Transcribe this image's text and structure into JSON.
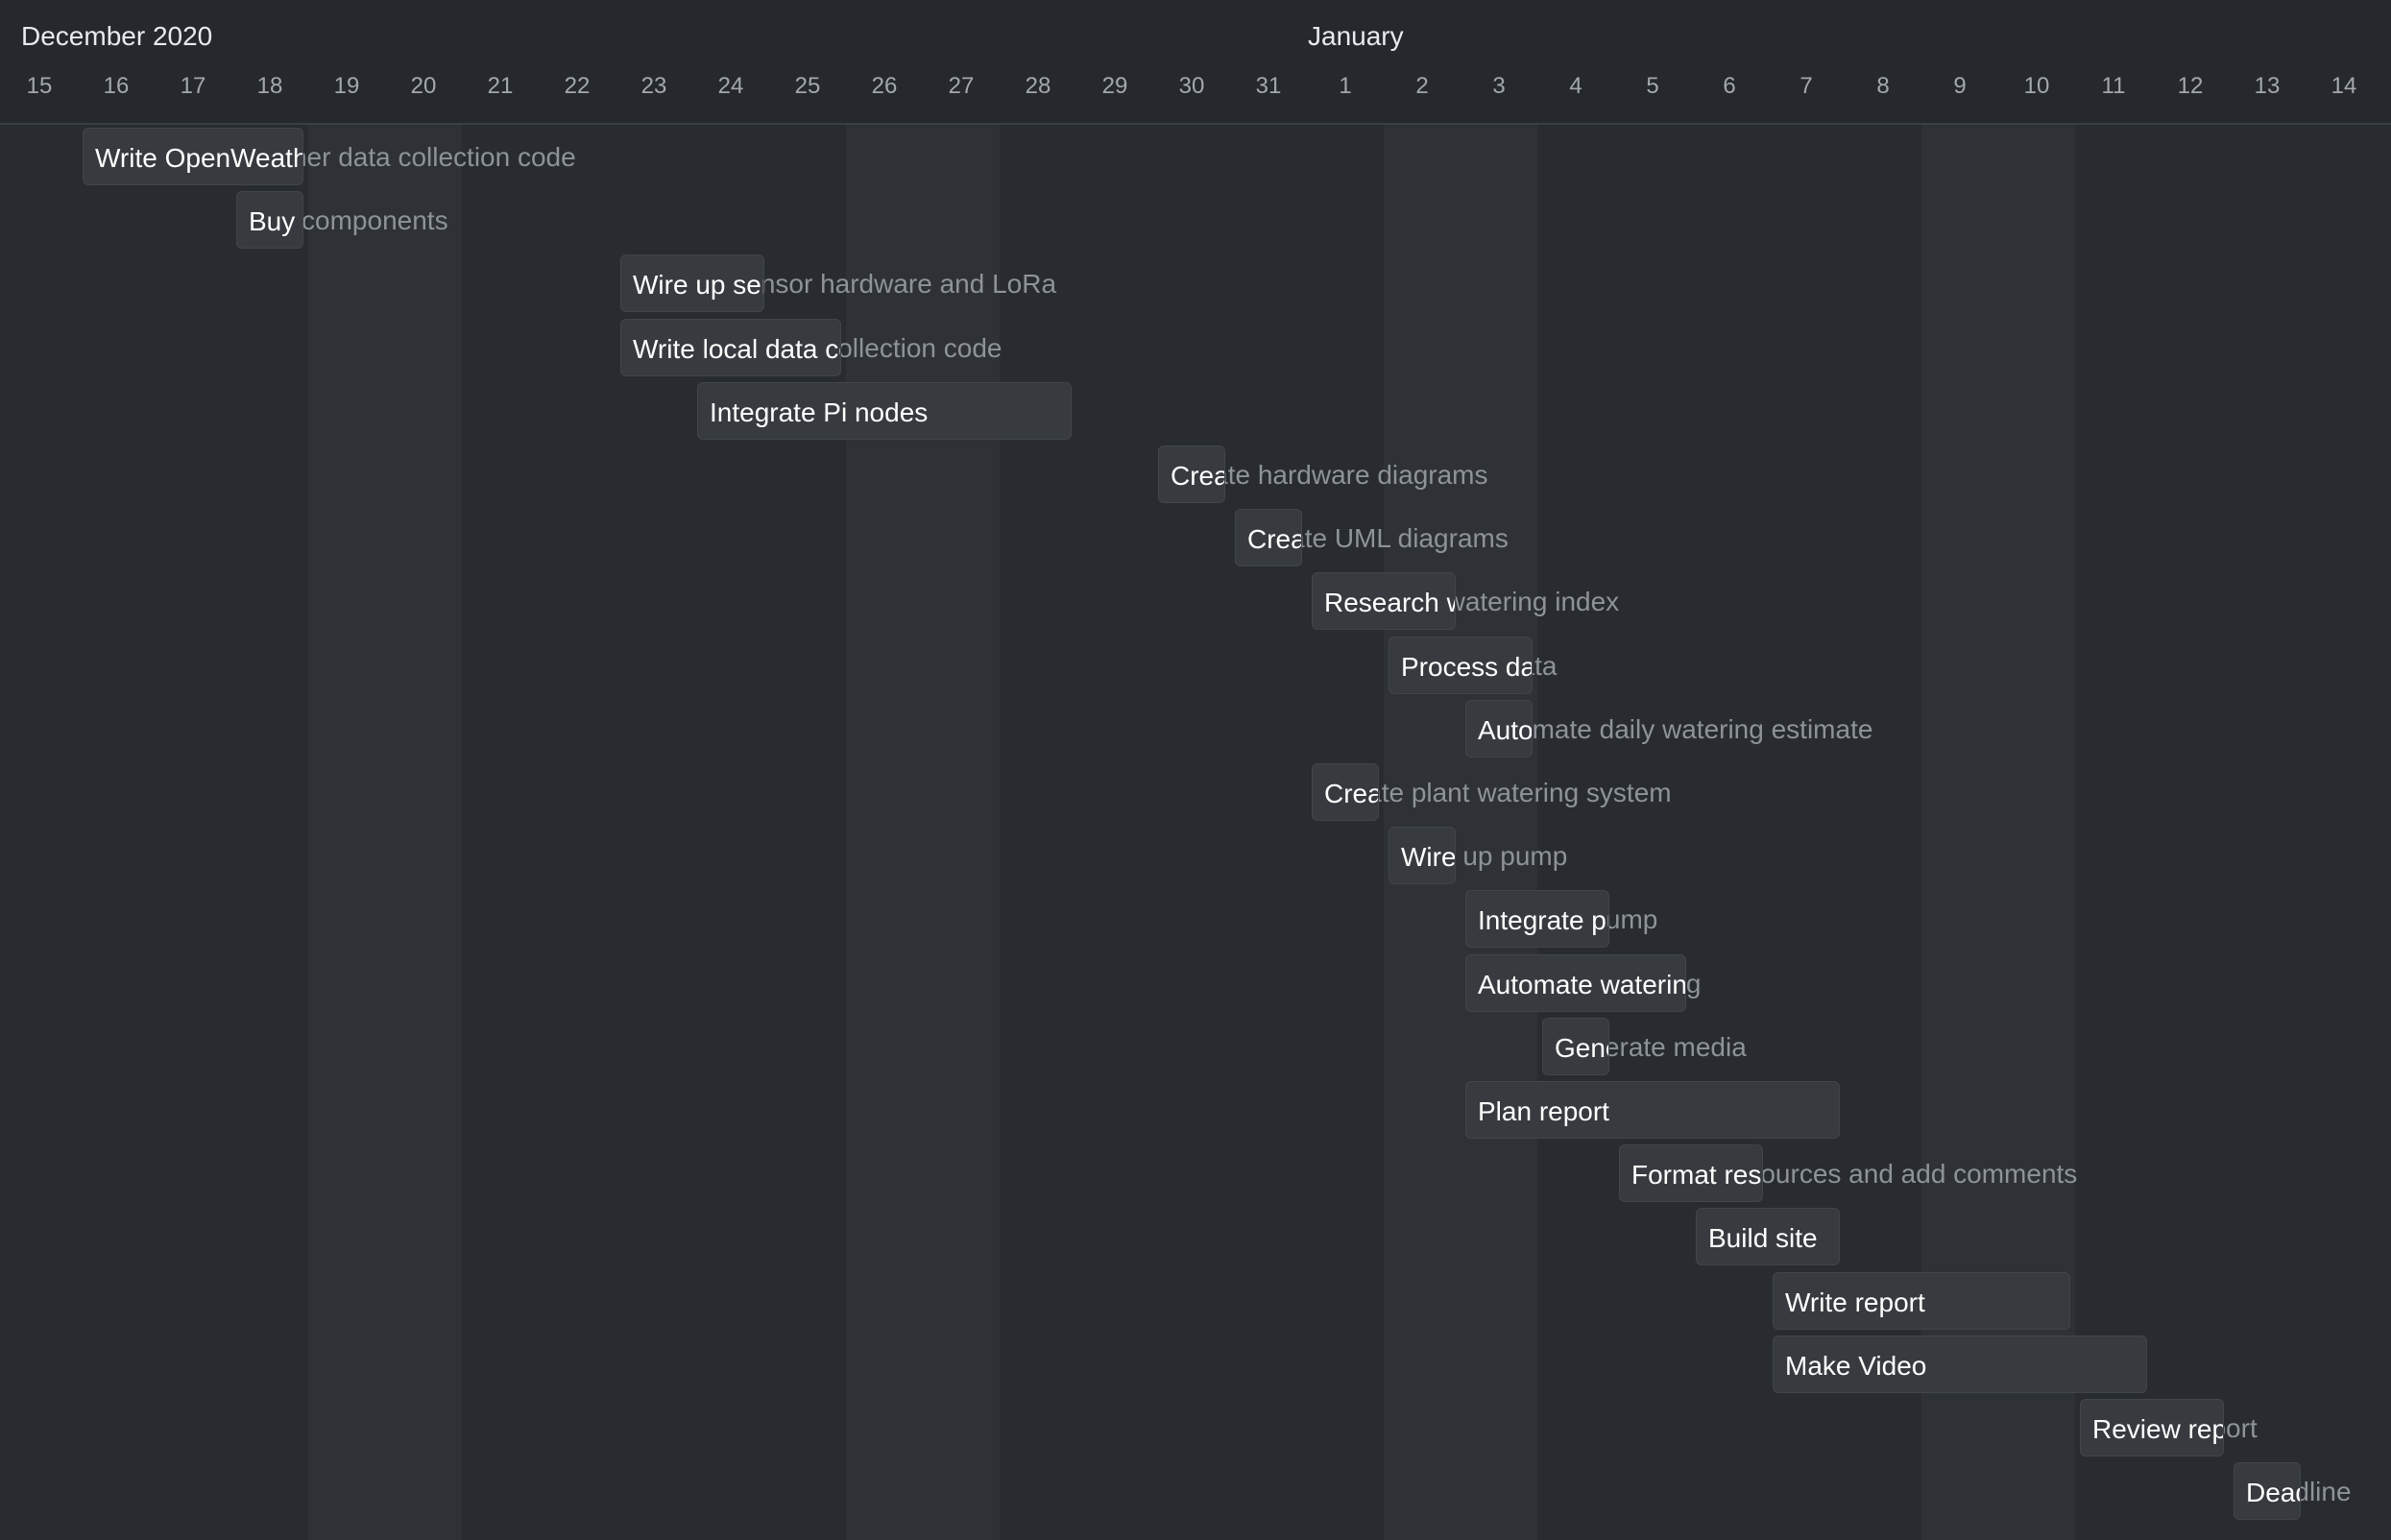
{
  "header": {
    "month_left": "December 2020",
    "month_right": "January",
    "days": [
      "15",
      "16",
      "17",
      "18",
      "19",
      "20",
      "21",
      "22",
      "23",
      "24",
      "25",
      "26",
      "27",
      "28",
      "29",
      "30",
      "31",
      "1",
      "2",
      "3",
      "4",
      "5",
      "6",
      "7",
      "8",
      "9",
      "10",
      "11",
      "12",
      "13",
      "14"
    ]
  },
  "weekend_day_indices": [
    4,
    5,
    11,
    12,
    18,
    19,
    25,
    26
  ],
  "tasks": [
    {
      "name": "Write OpenWeather data collection code",
      "start": "2020-12-16",
      "end": "2020-12-18"
    },
    {
      "name": "Buy components",
      "start": "2020-12-18",
      "end": "2020-12-18"
    },
    {
      "name": "Wire up sensor hardware and LoRa",
      "start": "2020-12-23",
      "end": "2020-12-24"
    },
    {
      "name": "Write local data collection code",
      "start": "2020-12-23",
      "end": "2020-12-25"
    },
    {
      "name": "Integrate Pi nodes",
      "start": "2020-12-24",
      "end": "2020-12-28"
    },
    {
      "name": "Create hardware diagrams",
      "start": "2020-12-30",
      "end": "2020-12-30"
    },
    {
      "name": "Create UML diagrams",
      "start": "2020-12-31",
      "end": "2020-12-31"
    },
    {
      "name": "Research watering index",
      "start": "2021-01-01",
      "end": "2021-01-02"
    },
    {
      "name": "Process data",
      "start": "2021-01-02",
      "end": "2021-01-03"
    },
    {
      "name": "Automate daily watering estimate",
      "start": "2021-01-03",
      "end": "2021-01-03"
    },
    {
      "name": "Create plant watering system",
      "start": "2021-01-01",
      "end": "2021-01-01"
    },
    {
      "name": "Wire up pump",
      "start": "2021-01-02",
      "end": "2021-01-02"
    },
    {
      "name": "Integrate pump",
      "start": "2021-01-03",
      "end": "2021-01-04"
    },
    {
      "name": "Automate watering",
      "start": "2021-01-03",
      "end": "2021-01-05"
    },
    {
      "name": "Generate media",
      "start": "2021-01-04",
      "end": "2021-01-04"
    },
    {
      "name": "Plan report",
      "start": "2021-01-03",
      "end": "2021-01-07"
    },
    {
      "name": "Format resources and add comments",
      "start": "2021-01-05",
      "end": "2021-01-06"
    },
    {
      "name": "Build site",
      "start": "2021-01-06",
      "end": "2021-01-07"
    },
    {
      "name": "Write report",
      "start": "2021-01-07",
      "end": "2021-01-10"
    },
    {
      "name": "Make Video",
      "start": "2021-01-07",
      "end": "2021-01-11"
    },
    {
      "name": "Review report",
      "start": "2021-01-11",
      "end": "2021-01-12"
    },
    {
      "name": "Deadline",
      "start": "2021-01-13",
      "end": "2021-01-13"
    }
  ],
  "colors": {
    "background": "#282c31",
    "weekend": "#2e3237",
    "bar": "#373b40",
    "label_inside": "#ffffff",
    "label_outside": "#8e9399"
  }
}
